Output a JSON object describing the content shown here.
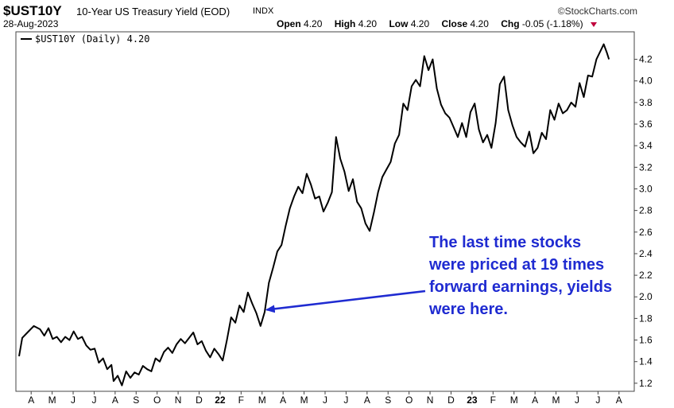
{
  "header": {
    "symbol": "$UST10Y",
    "title": "10-Year US Treasury Yield (EOD)",
    "exchange": "INDX",
    "brand": "©StockCharts.com",
    "date": "28-Aug-2023",
    "open_label": "Open",
    "open": "4.20",
    "high_label": "High",
    "high": "4.20",
    "low_label": "Low",
    "low": "4.20",
    "close_label": "Close",
    "close": "4.20",
    "chg_label": "Chg",
    "chg": "-0.05 (-1.18%)"
  },
  "colors": {
    "line": "#000000",
    "annotation": "#1f2bd1",
    "chg_marker": "#c0003c"
  },
  "chart_data": {
    "type": "line",
    "title": "$UST10Y 10-Year US Treasury Yield (EOD) INDX",
    "legend": "$UST10Y (Daily) 4.20",
    "legend_position": "top-left",
    "grid": false,
    "y_axis_side": "right",
    "ylim": [
      1.14,
      4.44
    ],
    "y_ticks": [
      1.2,
      1.4,
      1.6,
      1.8,
      2.0,
      2.2,
      2.4,
      2.6,
      2.8,
      3.0,
      3.2,
      3.4,
      3.6,
      3.8,
      4.0,
      4.2
    ],
    "x_ticks": [
      "A",
      "M",
      "J",
      "J",
      "A",
      "S",
      "O",
      "N",
      "D",
      "22",
      "F",
      "M",
      "A",
      "M",
      "J",
      "J",
      "A",
      "S",
      "O",
      "N",
      "D",
      "23",
      "F",
      "M",
      "A",
      "M",
      "J",
      "J",
      "A"
    ],
    "x_ticks_bold": [
      "22",
      "23"
    ],
    "xlim": [
      0,
      29
    ],
    "series": [
      {
        "name": "$UST10Y (Daily)",
        "points": [
          [
            0,
            1.45
          ],
          [
            0.15,
            1.62
          ],
          [
            0.4,
            1.67
          ],
          [
            0.7,
            1.73
          ],
          [
            1.0,
            1.7
          ],
          [
            1.2,
            1.64
          ],
          [
            1.4,
            1.71
          ],
          [
            1.6,
            1.61
          ],
          [
            1.8,
            1.63
          ],
          [
            2.0,
            1.58
          ],
          [
            2.2,
            1.63
          ],
          [
            2.4,
            1.6
          ],
          [
            2.6,
            1.68
          ],
          [
            2.8,
            1.61
          ],
          [
            3.0,
            1.63
          ],
          [
            3.2,
            1.55
          ],
          [
            3.4,
            1.51
          ],
          [
            3.6,
            1.52
          ],
          [
            3.8,
            1.39
          ],
          [
            4.0,
            1.43
          ],
          [
            4.2,
            1.33
          ],
          [
            4.4,
            1.37
          ],
          [
            4.5,
            1.22
          ],
          [
            4.7,
            1.27
          ],
          [
            4.9,
            1.18
          ],
          [
            5.1,
            1.31
          ],
          [
            5.3,
            1.25
          ],
          [
            5.5,
            1.3
          ],
          [
            5.7,
            1.28
          ],
          [
            5.9,
            1.36
          ],
          [
            6.1,
            1.33
          ],
          [
            6.3,
            1.31
          ],
          [
            6.5,
            1.43
          ],
          [
            6.7,
            1.4
          ],
          [
            6.9,
            1.49
          ],
          [
            7.1,
            1.53
          ],
          [
            7.3,
            1.48
          ],
          [
            7.5,
            1.56
          ],
          [
            7.7,
            1.61
          ],
          [
            7.9,
            1.57
          ],
          [
            8.1,
            1.62
          ],
          [
            8.3,
            1.67
          ],
          [
            8.5,
            1.56
          ],
          [
            8.7,
            1.59
          ],
          [
            8.9,
            1.5
          ],
          [
            9.1,
            1.44
          ],
          [
            9.3,
            1.52
          ],
          [
            9.5,
            1.47
          ],
          [
            9.7,
            1.41
          ],
          [
            9.9,
            1.6
          ],
          [
            10.1,
            1.81
          ],
          [
            10.3,
            1.76
          ],
          [
            10.5,
            1.92
          ],
          [
            10.7,
            1.86
          ],
          [
            10.9,
            2.04
          ],
          [
            11.1,
            1.94
          ],
          [
            11.3,
            1.85
          ],
          [
            11.5,
            1.73
          ],
          [
            11.7,
            1.86
          ],
          [
            11.9,
            2.13
          ],
          [
            12.1,
            2.27
          ],
          [
            12.3,
            2.42
          ],
          [
            12.5,
            2.48
          ],
          [
            12.7,
            2.66
          ],
          [
            12.9,
            2.82
          ],
          [
            13.1,
            2.93
          ],
          [
            13.3,
            3.02
          ],
          [
            13.5,
            2.96
          ],
          [
            13.7,
            3.14
          ],
          [
            13.9,
            3.04
          ],
          [
            14.1,
            2.91
          ],
          [
            14.3,
            2.93
          ],
          [
            14.5,
            2.79
          ],
          [
            14.7,
            2.87
          ],
          [
            14.9,
            2.97
          ],
          [
            15.1,
            3.48
          ],
          [
            15.3,
            3.28
          ],
          [
            15.5,
            3.16
          ],
          [
            15.7,
            2.98
          ],
          [
            15.9,
            3.09
          ],
          [
            16.1,
            2.88
          ],
          [
            16.3,
            2.82
          ],
          [
            16.5,
            2.68
          ],
          [
            16.7,
            2.61
          ],
          [
            16.9,
            2.78
          ],
          [
            17.1,
            2.97
          ],
          [
            17.3,
            3.11
          ],
          [
            17.5,
            3.18
          ],
          [
            17.7,
            3.25
          ],
          [
            17.9,
            3.42
          ],
          [
            18.1,
            3.5
          ],
          [
            18.3,
            3.79
          ],
          [
            18.5,
            3.73
          ],
          [
            18.7,
            3.95
          ],
          [
            18.9,
            4.01
          ],
          [
            19.1,
            3.95
          ],
          [
            19.3,
            4.23
          ],
          [
            19.5,
            4.1
          ],
          [
            19.7,
            4.2
          ],
          [
            19.9,
            3.93
          ],
          [
            20.1,
            3.78
          ],
          [
            20.3,
            3.7
          ],
          [
            20.5,
            3.66
          ],
          [
            20.7,
            3.57
          ],
          [
            20.9,
            3.48
          ],
          [
            21.1,
            3.61
          ],
          [
            21.3,
            3.48
          ],
          [
            21.5,
            3.71
          ],
          [
            21.7,
            3.79
          ],
          [
            21.9,
            3.55
          ],
          [
            22.1,
            3.43
          ],
          [
            22.3,
            3.5
          ],
          [
            22.5,
            3.38
          ],
          [
            22.7,
            3.61
          ],
          [
            22.9,
            3.97
          ],
          [
            23.1,
            4.04
          ],
          [
            23.3,
            3.73
          ],
          [
            23.5,
            3.59
          ],
          [
            23.7,
            3.48
          ],
          [
            23.9,
            3.43
          ],
          [
            24.1,
            3.39
          ],
          [
            24.3,
            3.53
          ],
          [
            24.5,
            3.33
          ],
          [
            24.7,
            3.38
          ],
          [
            24.9,
            3.52
          ],
          [
            25.1,
            3.46
          ],
          [
            25.3,
            3.73
          ],
          [
            25.5,
            3.64
          ],
          [
            25.7,
            3.79
          ],
          [
            25.9,
            3.7
          ],
          [
            26.1,
            3.73
          ],
          [
            26.3,
            3.8
          ],
          [
            26.5,
            3.76
          ],
          [
            26.7,
            3.98
          ],
          [
            26.9,
            3.85
          ],
          [
            27.1,
            4.05
          ],
          [
            27.3,
            4.04
          ],
          [
            27.5,
            4.2
          ],
          [
            27.7,
            4.28
          ],
          [
            27.85,
            4.34
          ],
          [
            28.0,
            4.26
          ],
          [
            28.1,
            4.2
          ]
        ]
      }
    ],
    "annotations": [
      {
        "lines": [
          "The last time stocks",
          "were priced at 19 times",
          "forward earnings, yields",
          "were here."
        ],
        "arrow_to": [
          11.8,
          1.88
        ]
      }
    ]
  }
}
